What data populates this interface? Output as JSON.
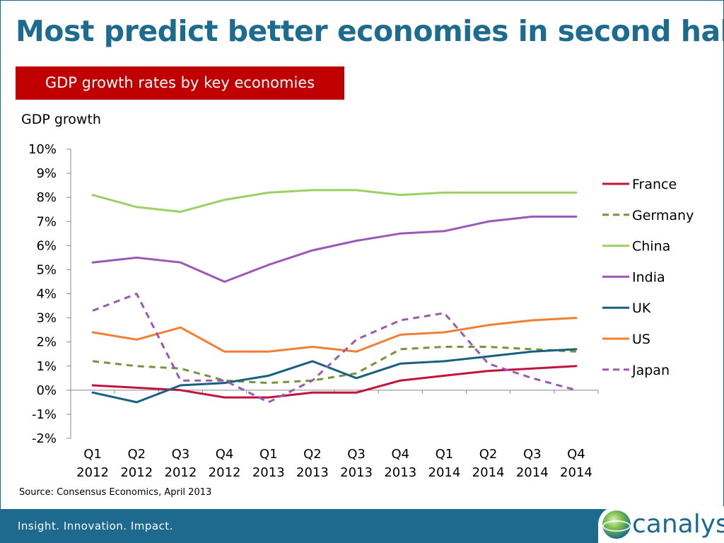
{
  "slide": {
    "title": "Most predict better economies in second half",
    "subtitle": "GDP growth rates by key economies",
    "ylabel": "GDP growth",
    "source": "Source: Consensus Economics, April 2013",
    "tagline": "Insight. Innovation. Impact.",
    "logo_text": "canalys"
  },
  "colors": {
    "title": "#1d6b8e",
    "banner": "#c00000",
    "footer": "#1d6a8e"
  },
  "chart_data": {
    "type": "line",
    "title": "GDP growth rates by key economies",
    "ylabel": "GDP growth",
    "xlabel": "",
    "categories": [
      [
        "Q1",
        "2012"
      ],
      [
        "Q2",
        "2012"
      ],
      [
        "Q3",
        "2012"
      ],
      [
        "Q4",
        "2012"
      ],
      [
        "Q1",
        "2013"
      ],
      [
        "Q2",
        "2013"
      ],
      [
        "Q3",
        "2013"
      ],
      [
        "Q4",
        "2013"
      ],
      [
        "Q1",
        "2014"
      ],
      [
        "Q2",
        "2014"
      ],
      [
        "Q3",
        "2014"
      ],
      [
        "Q4",
        "2014"
      ]
    ],
    "ylim": [
      -2,
      10
    ],
    "yticks": [
      10,
      9,
      8,
      7,
      6,
      5,
      4,
      3,
      2,
      1,
      0,
      -1,
      -2
    ],
    "ytick_labels": [
      "10%",
      "9%",
      "8%",
      "7%",
      "6%",
      "5%",
      "4%",
      "3%",
      "2%",
      "1%",
      "0%",
      "-1%",
      "-2%"
    ],
    "grid": false,
    "legend_position": "right",
    "series": [
      {
        "name": "France",
        "color": "#c0143c",
        "dashed": false,
        "values": [
          0.2,
          0.1,
          0.0,
          -0.3,
          -0.3,
          -0.1,
          -0.1,
          0.4,
          0.6,
          0.8,
          0.9,
          1.0
        ]
      },
      {
        "name": "Germany",
        "color": "#77933c",
        "dashed": true,
        "values": [
          1.2,
          1.0,
          0.9,
          0.4,
          0.3,
          0.4,
          0.7,
          1.7,
          1.8,
          1.8,
          1.7,
          1.6
        ]
      },
      {
        "name": "China",
        "color": "#9bd163",
        "dashed": false,
        "values": [
          8.1,
          7.6,
          7.4,
          7.9,
          8.2,
          8.3,
          8.3,
          8.1,
          8.2,
          8.2,
          8.2,
          8.2
        ]
      },
      {
        "name": "India",
        "color": "#9b59b6",
        "dashed": false,
        "values": [
          5.3,
          5.5,
          5.3,
          4.5,
          5.2,
          5.8,
          6.2,
          6.5,
          6.6,
          7.0,
          7.2,
          7.2
        ]
      },
      {
        "name": "UK",
        "color": "#17607f",
        "dashed": false,
        "values": [
          -0.1,
          -0.5,
          0.2,
          0.3,
          0.6,
          1.2,
          0.5,
          1.1,
          1.2,
          1.4,
          1.6,
          1.7
        ]
      },
      {
        "name": "US",
        "color": "#f07f33",
        "dashed": false,
        "values": [
          2.4,
          2.1,
          2.6,
          1.6,
          1.6,
          1.8,
          1.6,
          2.3,
          2.4,
          2.7,
          2.9,
          3.0
        ]
      },
      {
        "name": "Japan",
        "color": "#9b59b6",
        "dashed": true,
        "values": [
          3.3,
          4.0,
          0.4,
          0.4,
          -0.5,
          0.4,
          2.1,
          2.9,
          3.2,
          1.1,
          0.5,
          0.0
        ]
      }
    ]
  }
}
